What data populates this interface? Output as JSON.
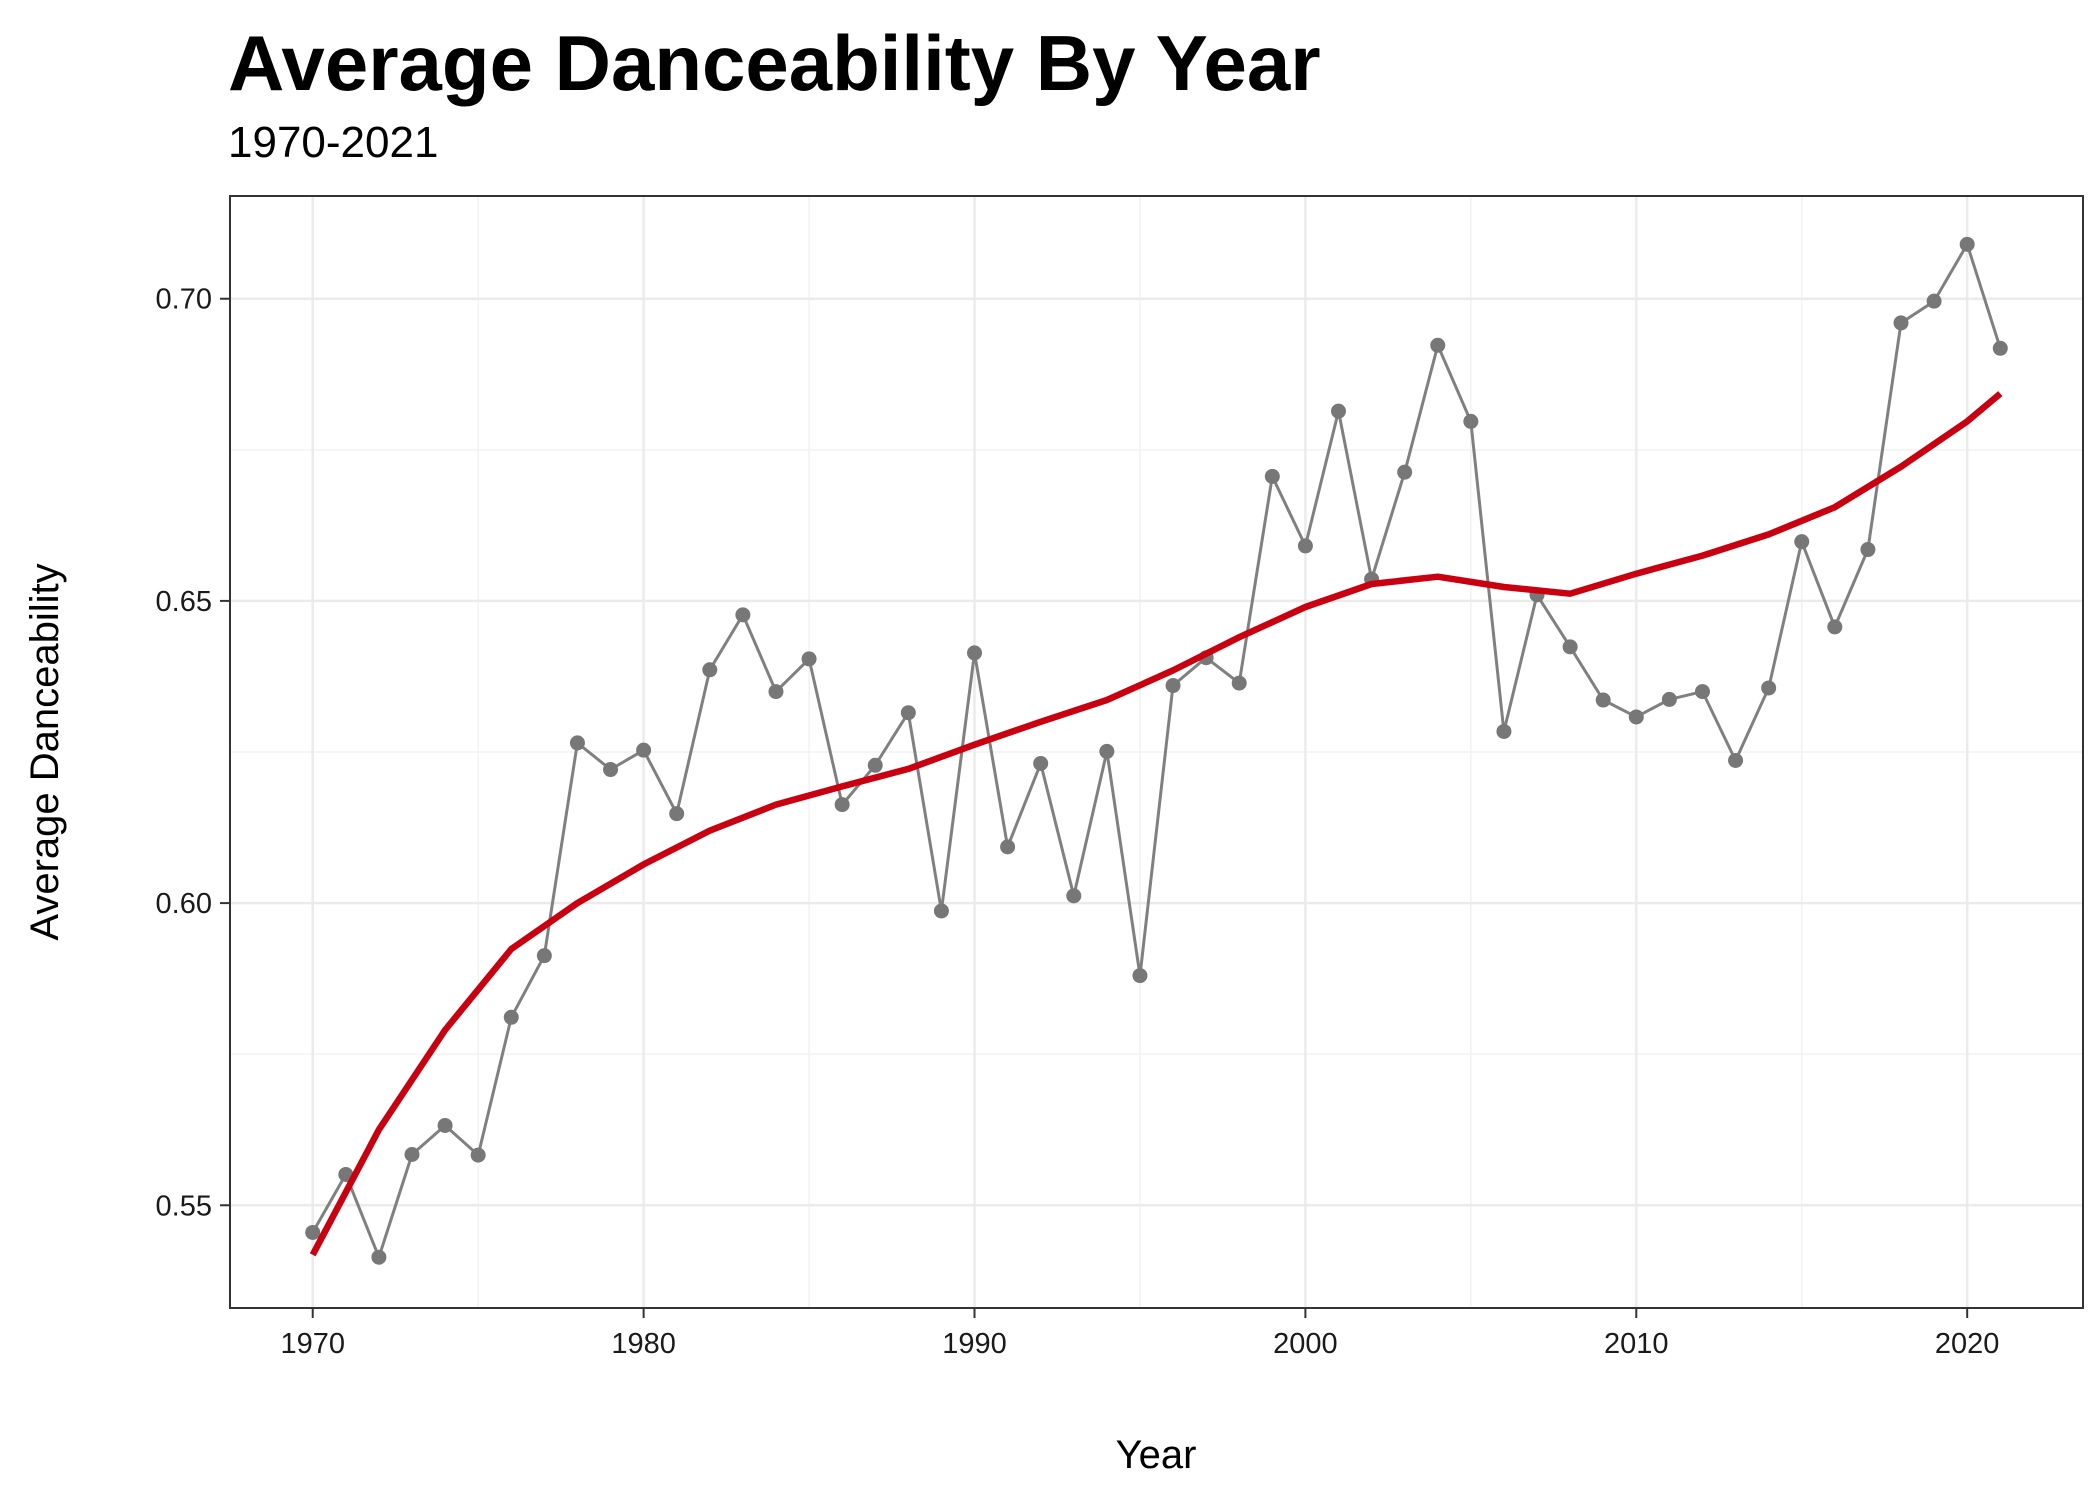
{
  "chart_data": {
    "type": "line",
    "title": "Average Danceability By Year",
    "subtitle": "1970-2021",
    "xlabel": "Year",
    "ylabel": "Average Danceability",
    "xlim": [
      1967.5,
      2023.5
    ],
    "ylim": [
      0.533,
      0.717
    ],
    "x_ticks": [
      1970,
      1980,
      1990,
      2000,
      2010,
      2020
    ],
    "x_tick_labels": [
      "1970",
      "1980",
      "1990",
      "2000",
      "2010",
      "2020"
    ],
    "y_ticks": [
      0.55,
      0.6,
      0.65,
      0.7
    ],
    "y_tick_labels": [
      "0.55",
      "0.60",
      "0.65",
      "0.70"
    ],
    "grid": true,
    "legend": "none",
    "colors": {
      "data": "#808080",
      "trend": "#c8000f",
      "grid": "#ebebeb",
      "panel_border": "#333333"
    },
    "series": [
      {
        "x": [
          1970,
          1971,
          1972,
          1973,
          1974,
          1975,
          1976,
          1977,
          1978,
          1979,
          1980,
          1981,
          1982,
          1983,
          1984,
          1985,
          1986,
          1987,
          1988,
          1989,
          1990,
          1991,
          1992,
          1993,
          1994,
          1995,
          1996,
          1997,
          1998,
          1999,
          2000,
          2001,
          2002,
          2003,
          2004,
          2005,
          2006,
          2007,
          2008,
          2009,
          2010,
          2011,
          2012,
          2013,
          2014,
          2015,
          2016,
          2017,
          2018,
          2019,
          2020,
          2021
        ],
        "y": [
          0.5455,
          0.5551,
          0.5414,
          0.5584,
          0.5632,
          0.5583,
          0.5811,
          0.5913,
          0.6265,
          0.6221,
          0.6253,
          0.6148,
          0.6386,
          0.6477,
          0.635,
          0.6404,
          0.6163,
          0.6228,
          0.6315,
          0.5987,
          0.6414,
          0.6093,
          0.6231,
          0.6012,
          0.6251,
          0.588,
          0.636,
          0.6406,
          0.6364,
          0.6706,
          0.6591,
          0.6814,
          0.6536,
          0.6713,
          0.6923,
          0.6797,
          0.6284,
          0.651,
          0.6424,
          0.6336,
          0.6308,
          0.6337,
          0.635,
          0.6236,
          0.6356,
          0.6598,
          0.6457,
          0.6585,
          0.696,
          0.6996,
          0.709,
          0.6918
        ]
      },
      {
        "x": [
          1970,
          1972,
          1974,
          1976,
          1978,
          1980,
          1982,
          1984,
          1986,
          1988,
          1990,
          1992,
          1994,
          1996,
          1998,
          2000,
          2002,
          2004,
          2006,
          2008,
          2010,
          2012,
          2014,
          2016,
          2018,
          2020,
          2021
        ],
        "y": [
          0.5418,
          0.5625,
          0.579,
          0.5924,
          0.6,
          0.6064,
          0.612,
          0.6163,
          0.6193,
          0.6222,
          0.6262,
          0.63,
          0.6336,
          0.6385,
          0.644,
          0.649,
          0.6528,
          0.654,
          0.6523,
          0.6512,
          0.6545,
          0.6575,
          0.661,
          0.6655,
          0.6722,
          0.6797,
          0.6843
        ]
      }
    ]
  }
}
